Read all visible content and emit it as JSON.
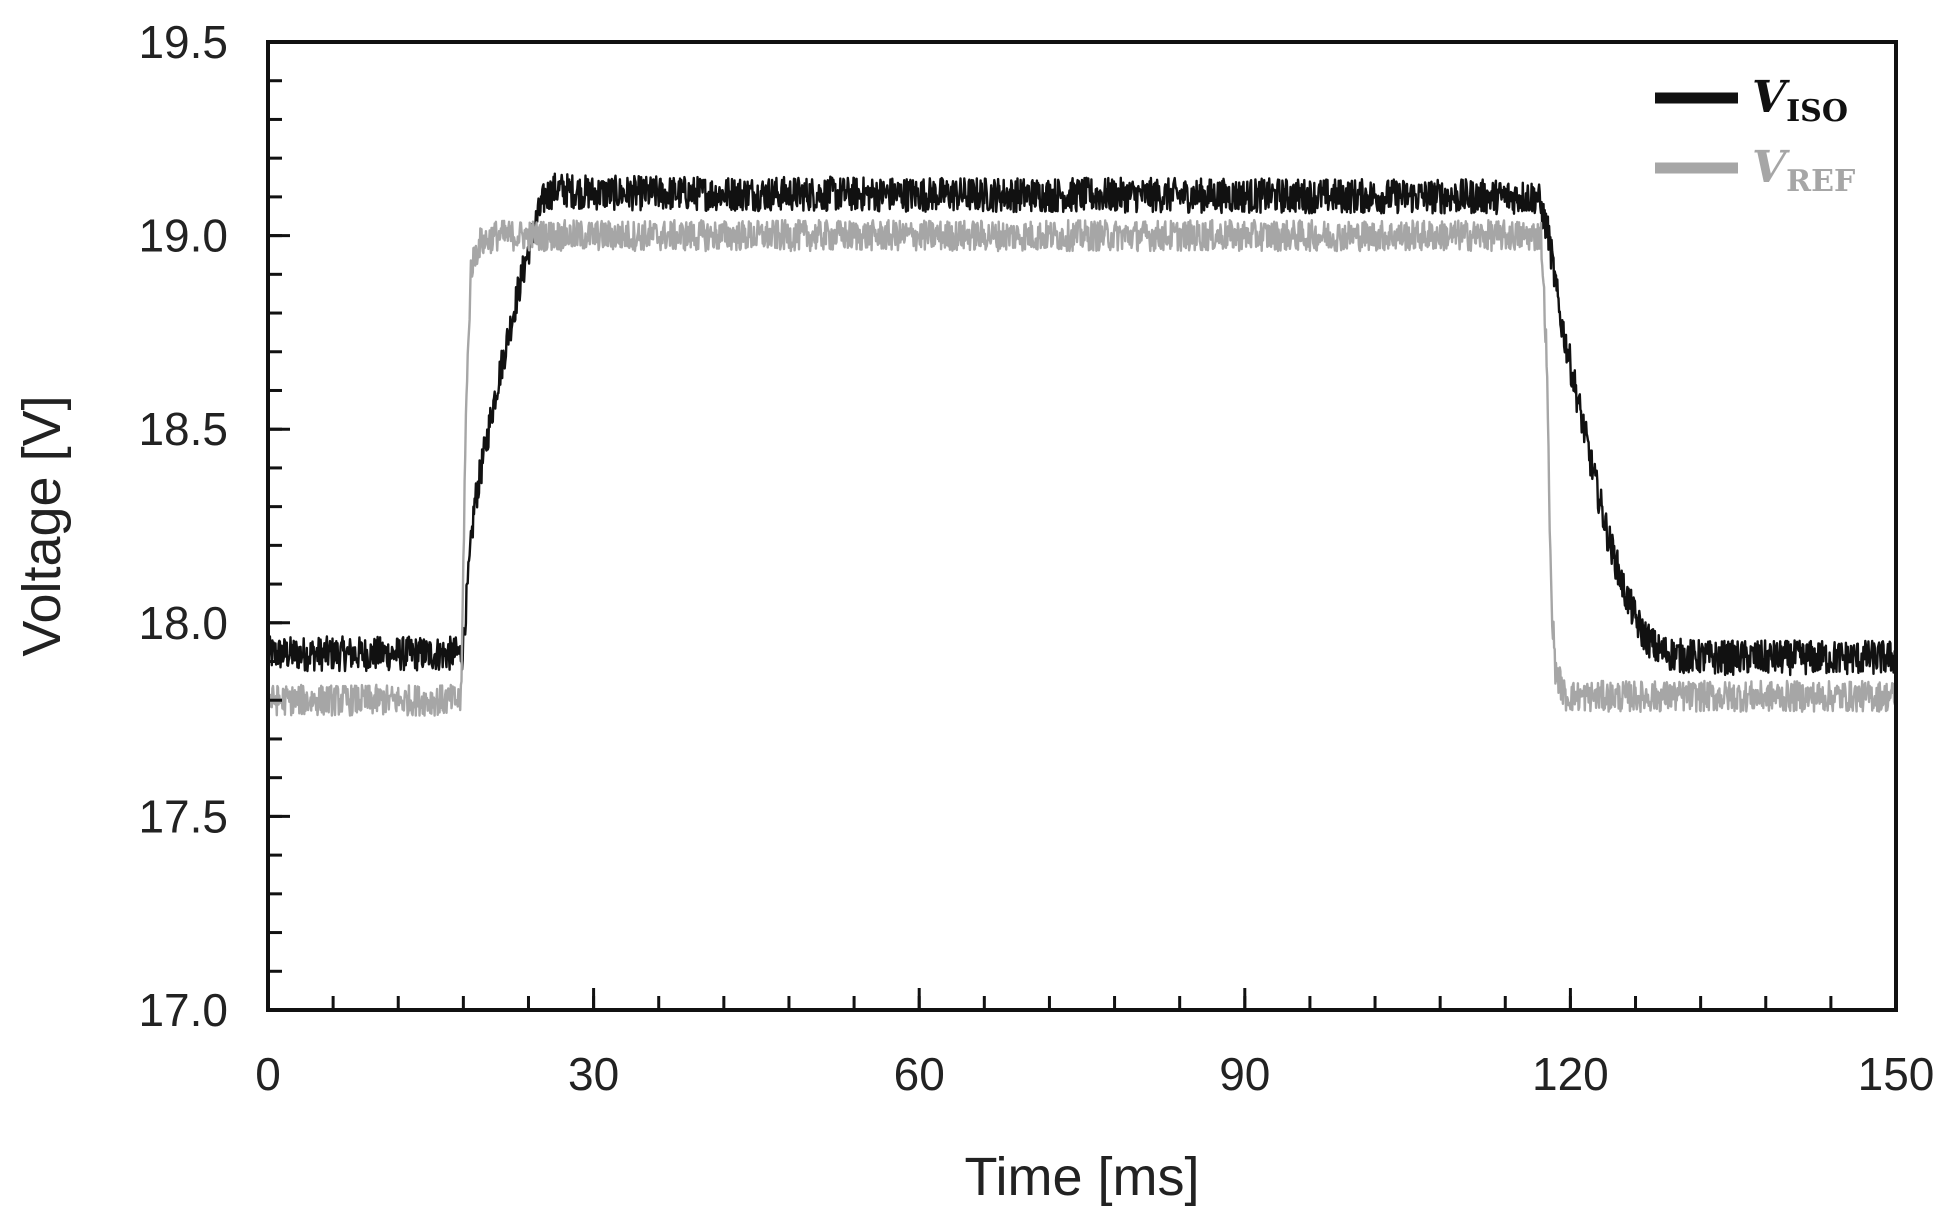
{
  "chart_data": {
    "type": "line",
    "xlabel": "Time [ms]",
    "ylabel": "Voltage [V]",
    "xlim": [
      0,
      150
    ],
    "ylim": [
      17.0,
      19.5
    ],
    "xticks": [
      "0",
      "30",
      "60",
      "90",
      "120",
      "150"
    ],
    "yticks": [
      "17.0",
      "17.5",
      "18.0",
      "18.5",
      "19.0",
      "19.5"
    ],
    "x_minor_step": 6,
    "y_minor_step": 0.1,
    "grid": false,
    "legend_position": "top-right",
    "series": [
      {
        "name": "V",
        "subscript": "ISO",
        "color": "#111111",
        "noise_amplitude": 0.045,
        "x": [
          0,
          17.5,
          17.9,
          19,
          21,
          23,
          24.5,
          25.5,
          26.5,
          30,
          117,
          118,
          119,
          120.5,
          122,
          123.5,
          125,
          126.5,
          128,
          130,
          133,
          150
        ],
        "y": [
          17.92,
          17.92,
          17.92,
          18.3,
          18.6,
          18.85,
          19.02,
          19.1,
          19.12,
          19.11,
          19.1,
          19.0,
          18.8,
          18.6,
          18.4,
          18.22,
          18.08,
          17.98,
          17.93,
          17.915,
          17.91,
          17.91
        ]
      },
      {
        "name": "V",
        "subscript": "REF",
        "color": "#a6a6a6",
        "noise_amplitude": 0.04,
        "x": [
          0,
          17.8,
          18.2,
          18.7,
          19.5,
          21,
          117.3,
          117.8,
          118.2,
          118.6,
          119.5,
          150
        ],
        "y": [
          17.8,
          17.8,
          18.5,
          18.92,
          18.98,
          19.0,
          19.0,
          18.7,
          18.1,
          17.88,
          17.81,
          17.81
        ]
      }
    ]
  }
}
